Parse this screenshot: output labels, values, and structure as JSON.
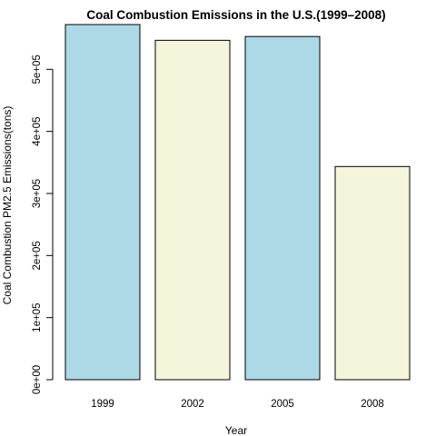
{
  "chart_data": {
    "type": "bar",
    "title": "Coal Combustion Emissions in the U.S.(1999–2008)",
    "xlabel": "Year",
    "ylabel": "Coal Combustion PM2.5 Emissions(tons)",
    "categories": [
      "1999",
      "2002",
      "2005",
      "2008"
    ],
    "values": [
      572126,
      546789,
      552881,
      343432
    ],
    "bar_colors": [
      "#add8e6",
      "#f5f5dc",
      "#add8e6",
      "#f5f5dc"
    ],
    "ylim": [
      0,
      600000
    ],
    "yticks": [
      0,
      100000,
      200000,
      300000,
      400000,
      500000
    ],
    "ytick_labels": [
      "0e+00",
      "1e+05",
      "2e+05",
      "3e+05",
      "4e+05",
      "5e+05"
    ],
    "grid": false,
    "legend": "none"
  }
}
